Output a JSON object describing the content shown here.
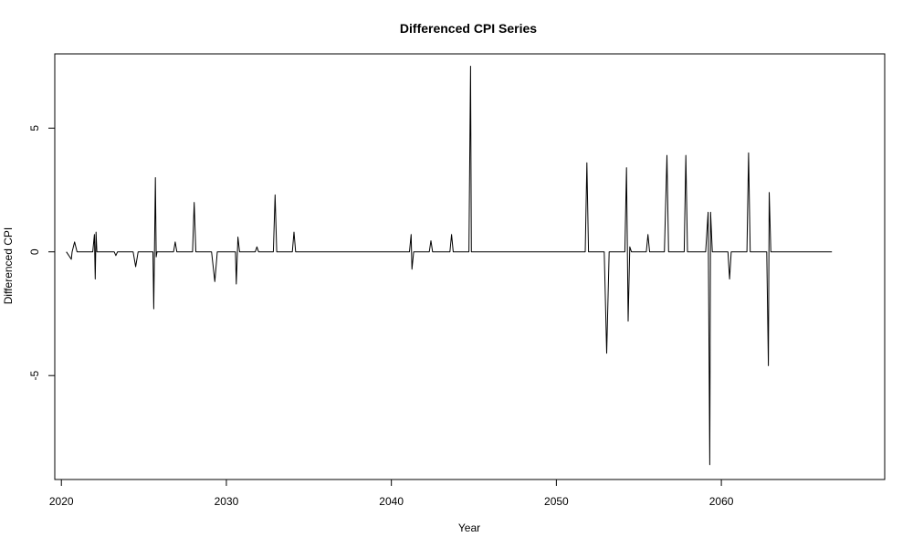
{
  "chart_data": {
    "type": "line",
    "title": "Differenced CPI Series",
    "xlabel": "Year",
    "ylabel": "Differenced CPI",
    "xlim": [
      2019.6,
      2069.9
    ],
    "ylim": [
      -9.2,
      8.0
    ],
    "x_ticks": [
      2020,
      2030,
      2040,
      2050,
      2060
    ],
    "x_tick_labels": [
      "2020",
      "2030",
      "2040",
      "2050",
      "2060"
    ],
    "y_ticks": [
      -5,
      0,
      5
    ],
    "y_tick_labels": [
      "-5",
      "0",
      "5"
    ],
    "grid": false,
    "legend": "none",
    "series": [
      {
        "color": "#000000",
        "x": [
          2020.3,
          2020.6,
          2020.65,
          2020.8,
          2020.95,
          2021.9,
          2022.0,
          2022.05,
          2022.1,
          2022.15,
          2023.2,
          2023.3,
          2023.4,
          2024.35,
          2024.5,
          2024.65,
          2025.55,
          2025.6,
          2025.7,
          2025.75,
          2025.8,
          2026.8,
          2026.9,
          2027.0,
          2027.95,
          2028.05,
          2028.15,
          2029.1,
          2029.3,
          2029.45,
          2030.55,
          2030.6,
          2030.7,
          2030.8,
          2031.75,
          2031.85,
          2031.95,
          2032.85,
          2032.95,
          2033.05,
          2034.0,
          2034.1,
          2034.2,
          2041.1,
          2041.2,
          2041.25,
          2041.35,
          2042.3,
          2042.4,
          2042.5,
          2043.55,
          2043.65,
          2043.75,
          2044.7,
          2044.8,
          2044.85,
          2045.0,
          2051.75,
          2051.85,
          2051.95,
          2052.9,
          2053.05,
          2053.2,
          2054.15,
          2054.25,
          2054.35,
          2054.45,
          2054.55,
          2055.45,
          2055.55,
          2055.65,
          2056.55,
          2056.7,
          2056.8,
          2057.75,
          2057.85,
          2057.95,
          2059.05,
          2059.2,
          2059.3,
          2059.35,
          2059.45,
          2060.4,
          2060.5,
          2060.6,
          2061.55,
          2061.65,
          2061.75,
          2062.75,
          2062.85,
          2062.9,
          2063.0,
          2066.7
        ],
        "values": [
          0,
          -0.3,
          0,
          0.4,
          0,
          0,
          0.7,
          -1.1,
          0.8,
          0,
          0,
          -0.15,
          0,
          0,
          -0.6,
          0,
          0,
          -2.3,
          3.0,
          -0.2,
          0,
          0,
          0.4,
          0,
          0,
          2.0,
          0,
          0,
          -1.2,
          0,
          0,
          -1.3,
          0.6,
          0,
          0,
          0.2,
          0,
          0,
          2.3,
          0,
          0,
          0.8,
          0,
          0,
          0.7,
          -0.7,
          0,
          0,
          0.45,
          0,
          0,
          0.7,
          0,
          0,
          7.5,
          0,
          0,
          0,
          3.6,
          0,
          0,
          -4.1,
          0,
          0,
          3.4,
          -2.8,
          0.2,
          0,
          0,
          0.7,
          0,
          0,
          3.9,
          0,
          0,
          3.9,
          0,
          0,
          1.6,
          -8.6,
          1.6,
          0,
          0,
          -1.1,
          0,
          0,
          4.0,
          0,
          0,
          -4.6,
          2.4,
          0,
          0
        ]
      }
    ]
  }
}
